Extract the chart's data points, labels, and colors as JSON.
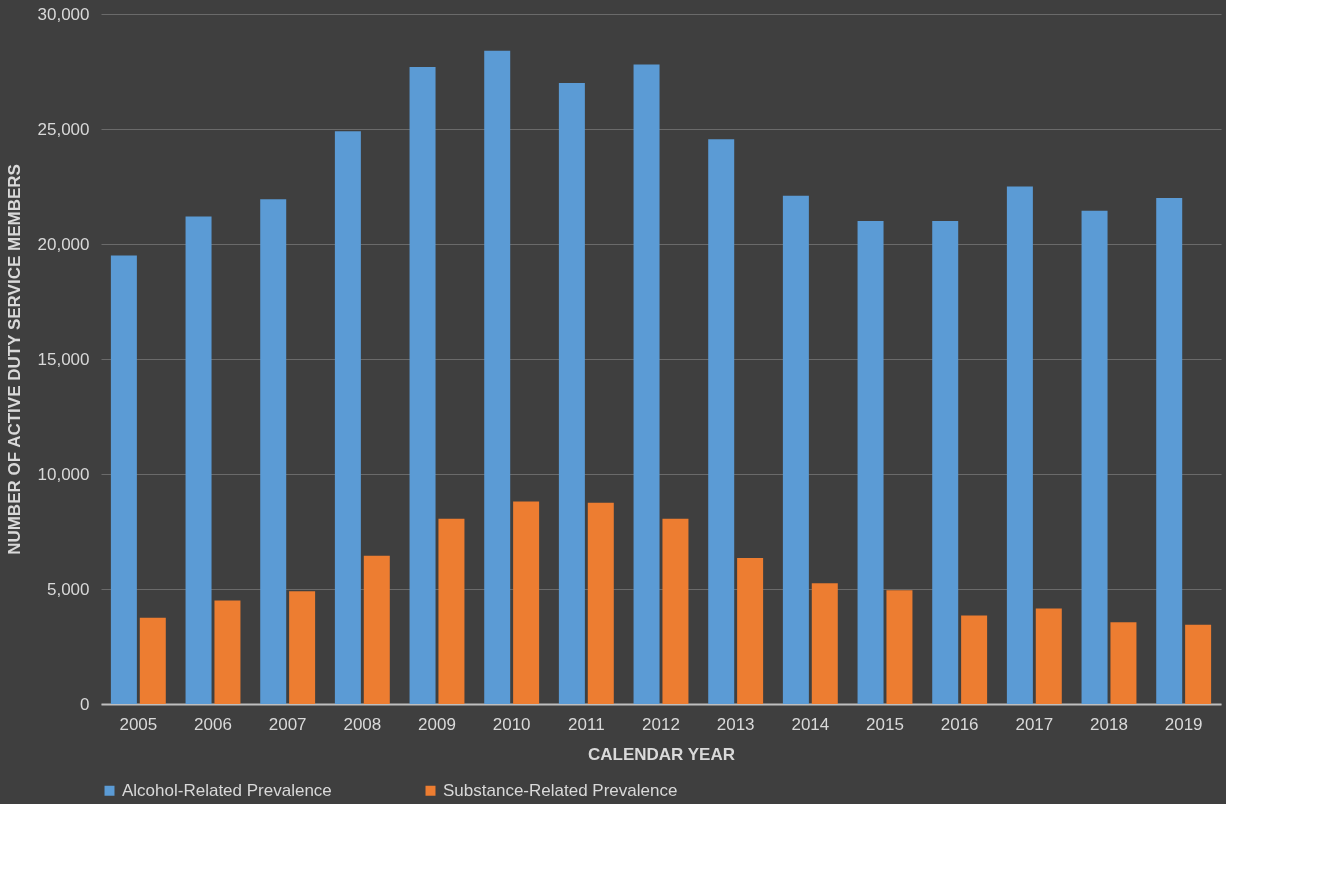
{
  "chart_data": {
    "type": "bar",
    "xlabel": "CALENDAR YEAR",
    "ylabel": "NUMBER OF ACTIVE DUTY SERVICE MEMBERS",
    "categories": [
      "2005",
      "2006",
      "2007",
      "2008",
      "2009",
      "2010",
      "2011",
      "2012",
      "2013",
      "2014",
      "2015",
      "2016",
      "2017",
      "2018",
      "2019"
    ],
    "series": [
      {
        "name": "Alcohol-Related Prevalence",
        "color": "#5b9bd5",
        "values": [
          19500,
          21200,
          21950,
          24900,
          27700,
          28400,
          27000,
          27800,
          24550,
          22100,
          21000,
          21000,
          22500,
          21450,
          22000
        ]
      },
      {
        "name": "Substance-Related Prevalence",
        "color": "#ed7d31",
        "values": [
          3750,
          4500,
          4900,
          6450,
          8050,
          8800,
          8750,
          8050,
          6350,
          5250,
          4950,
          3850,
          4150,
          3550,
          3450
        ]
      }
    ],
    "ylim": [
      0,
      30000
    ],
    "yticks": [
      0,
      {
        "value": 5000,
        "label": "5,000"
      },
      {
        "value": 10000,
        "label": "10,000"
      },
      {
        "value": 15000,
        "label": "15,000"
      },
      {
        "value": 20000,
        "label": "20,000"
      },
      {
        "value": 25000,
        "label": "25,000"
      },
      {
        "value": 30000,
        "label": "30,000"
      }
    ],
    "grid": "y",
    "legend": "bottom"
  }
}
